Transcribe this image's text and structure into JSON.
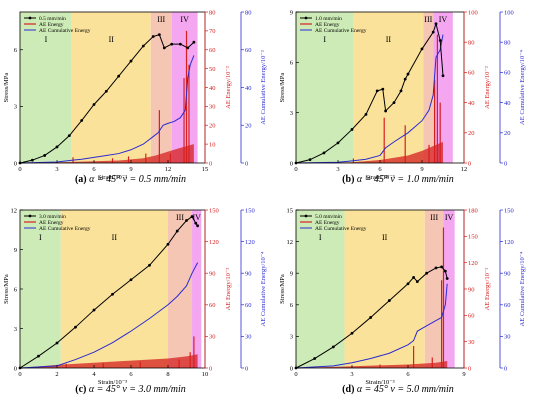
{
  "colors": {
    "stage_I": "#cdebb6",
    "stage_II": "#fbe29a",
    "stage_III": "#f5c6b4",
    "stage_IV": "#f4a6f0",
    "stress": "#000000",
    "ae_energy": "#d62020",
    "ae_cumulative": "#2b2bd0",
    "axis_left": "#000000",
    "axis_mid": "#d62020",
    "axis_right": "#2b2bd0"
  },
  "chart_data": [
    {
      "type": "line",
      "caption": {
        "letter": "(a)",
        "text": "α = 45° v = 0.5 mm/min"
      },
      "xlabel": "Strain/10⁻³",
      "ylabel_left": "Stress/MPa",
      "ylabel_mid": "AE Energy/10⁻²",
      "ylabel_right": "AE Cumulative Energy/10⁻²",
      "xlim": [
        0,
        15
      ],
      "xticks": [
        0,
        3,
        6,
        9,
        12,
        15
      ],
      "ylim_left": [
        0,
        8
      ],
      "yticks_left": [
        0,
        3,
        6
      ],
      "ylim_mid": [
        0,
        80
      ],
      "yticks_mid": [
        0,
        10,
        20,
        30,
        40,
        50,
        60,
        70,
        80
      ],
      "ylim_right": [
        0,
        80
      ],
      "yticks_right": [
        0,
        20,
        40,
        60,
        80
      ],
      "legend": [
        "0.5 mm/min",
        "AE Energy",
        "AE Cumulative Energy"
      ],
      "stages": [
        {
          "label": "I",
          "from": 0,
          "to": 4.2
        },
        {
          "label": "II",
          "from": 4.2,
          "to": 10.6
        },
        {
          "label": "III",
          "from": 10.6,
          "to": 12.3
        },
        {
          "label": "IV",
          "from": 12.3,
          "to": 14.4
        }
      ],
      "stress": {
        "x": [
          0,
          1,
          2,
          3,
          4,
          5,
          6,
          7,
          8,
          9,
          10,
          10.8,
          11.3,
          11.7,
          12.3,
          13,
          13.6,
          14.1
        ],
        "y": [
          0,
          0.15,
          0.4,
          0.85,
          1.45,
          2.25,
          3.1,
          3.8,
          4.6,
          5.4,
          6.2,
          6.7,
          6.8,
          6.1,
          6.3,
          6.3,
          6.1,
          6.4
        ]
      },
      "ae_cumulative": {
        "x": [
          0,
          3,
          4.3,
          5,
          6,
          7,
          8,
          9,
          10,
          10.8,
          11.2,
          11.6,
          12,
          12.5,
          13,
          13.4,
          13.6,
          13.8,
          14.1
        ],
        "y": [
          0,
          0.5,
          1.5,
          2,
          3,
          4,
          5,
          7,
          10,
          14,
          16,
          20,
          21,
          22,
          24,
          28,
          45,
          52,
          57
        ]
      },
      "ae_baseline": {
        "x": [
          0,
          4,
          8,
          10,
          11,
          12,
          13,
          14.1
        ],
        "y": [
          0,
          0.5,
          1.3,
          2.5,
          4,
          6,
          8,
          10
        ]
      },
      "ae_spikes": {
        "x": [
          4.3,
          7.5,
          8.8,
          10.2,
          11.3,
          12.2,
          13.3,
          13.5,
          13.7
        ],
        "y": [
          3,
          2.5,
          3.5,
          5,
          28,
          5,
          45,
          70,
          52
        ]
      }
    },
    {
      "type": "line",
      "caption": {
        "letter": "(b)",
        "text": "α = 45° v = 1.0 mm/min"
      },
      "xlabel": "Strain/10⁻³",
      "ylabel_left": "Stress/MPa",
      "ylabel_mid": "AE Energy/10⁻²",
      "ylabel_right": "AE Cumulative Energy/10⁻⁴",
      "xlim": [
        0,
        12
      ],
      "xticks": [
        0,
        3,
        6,
        9,
        12
      ],
      "ylim_left": [
        0,
        9
      ],
      "yticks_left": [
        0,
        3,
        6,
        9
      ],
      "ylim_mid": [
        0,
        100
      ],
      "yticks_mid": [
        0,
        20,
        40,
        60,
        80,
        100
      ],
      "ylim_right": [
        0,
        100
      ],
      "yticks_right": [
        0,
        20,
        40,
        60,
        80,
        100
      ],
      "legend": [
        "1.0 mm/min",
        "AE Energy",
        "AE Cumulative Energy"
      ],
      "stages": [
        {
          "label": "I",
          "from": 0,
          "to": 4.1
        },
        {
          "label": "II",
          "from": 4.1,
          "to": 9.1
        },
        {
          "label": "III",
          "from": 9.1,
          "to": 9.8
        },
        {
          "label": "IV",
          "from": 9.8,
          "to": 11.2
        }
      ],
      "stress": {
        "x": [
          0,
          1,
          2,
          3,
          4,
          5,
          5.8,
          6.2,
          6.4,
          7,
          7.5,
          7.8,
          8,
          9,
          9.8,
          10,
          10.3,
          10.5
        ],
        "y": [
          0,
          0.2,
          0.6,
          1.2,
          2.0,
          2.9,
          4.3,
          4.4,
          3.1,
          3.6,
          4.3,
          5.0,
          5.3,
          6.8,
          7.8,
          8.3,
          7.3,
          5.2
        ]
      },
      "ae_cumulative": {
        "x": [
          0,
          3,
          4.1,
          5,
          6,
          6.4,
          7,
          8,
          9,
          9.5,
          9.8,
          10,
          10.3,
          10.5
        ],
        "y": [
          0,
          0.5,
          1.5,
          2.5,
          5,
          10,
          14,
          20,
          28,
          35,
          45,
          70,
          75,
          85
        ]
      },
      "ae_baseline": {
        "x": [
          0,
          4,
          6,
          8,
          9,
          10,
          10.5
        ],
        "y": [
          0,
          0.5,
          2,
          5,
          8,
          12,
          14
        ]
      },
      "ae_spikes": {
        "x": [
          4.1,
          6.3,
          7.8,
          9.5,
          9.9,
          10.1,
          10.3
        ],
        "y": [
          3,
          30,
          25,
          12,
          55,
          85,
          40
        ]
      }
    },
    {
      "type": "line",
      "caption": {
        "letter": "(c)",
        "text": "α = 45° v = 3.0 mm/min"
      },
      "xlabel": "Strain/10⁻³",
      "ylabel_left": "Stress/MPa",
      "ylabel_mid": "AE Energy/10⁻²",
      "ylabel_right": "AE Cumulative Energy/10⁻⁴",
      "xlim": [
        0,
        10
      ],
      "xticks": [
        0,
        2,
        4,
        6,
        8,
        10
      ],
      "ylim_left": [
        0,
        12
      ],
      "yticks_left": [
        0,
        3,
        6,
        9,
        12
      ],
      "ylim_mid": [
        0,
        150
      ],
      "yticks_mid": [
        0,
        30,
        60,
        90,
        120,
        150
      ],
      "ylim_right": [
        0,
        150
      ],
      "yticks_right": [
        0,
        30,
        60,
        90,
        120,
        150
      ],
      "legend": [
        "3.0 mm/min",
        "AE Energy",
        "AE Cumulative Energy"
      ],
      "stages": [
        {
          "label": "I",
          "from": 0,
          "to": 2.2
        },
        {
          "label": "II",
          "from": 2.2,
          "to": 8.0
        },
        {
          "label": "III",
          "from": 8.0,
          "to": 9.3
        },
        {
          "label": "IV",
          "from": 9.3,
          "to": 9.8
        }
      ],
      "stress": {
        "x": [
          0,
          1,
          2,
          3,
          4,
          5,
          6,
          7,
          8,
          8.5,
          9,
          9.3,
          9.5,
          9.6
        ],
        "y": [
          0,
          0.9,
          1.9,
          3.1,
          4.4,
          5.6,
          6.7,
          7.8,
          9.4,
          10.4,
          11.2,
          11.5,
          11.0,
          10.8
        ]
      },
      "ae_cumulative": {
        "x": [
          0,
          2,
          3,
          4,
          5,
          6,
          7,
          8,
          8.5,
          9,
          9.3,
          9.6
        ],
        "y": [
          0,
          2,
          8,
          15,
          24,
          35,
          47,
          60,
          68,
          78,
          90,
          100
        ]
      },
      "ae_baseline": {
        "x": [
          0,
          2,
          4,
          6,
          8,
          9,
          9.6
        ],
        "y": [
          0,
          3,
          5,
          7,
          9,
          11,
          13
        ]
      },
      "ae_spikes": {
        "x": [
          2.5,
          4.5,
          6.5,
          8.6,
          9.2,
          9.4
        ],
        "y": [
          4,
          5,
          6,
          8,
          15,
          30
        ]
      }
    },
    {
      "type": "line",
      "caption": {
        "letter": "(d)",
        "text": "α = 45° v = 5.0 mm/min"
      },
      "xlabel": "Strain/10⁻³",
      "ylabel_left": "Stress/MPa",
      "ylabel_mid": "AE Energy/10⁻²",
      "ylabel_right": "AE Cumulative Energy/10⁻⁴",
      "xlim": [
        0,
        9
      ],
      "xticks": [
        0,
        3,
        6,
        9
      ],
      "ylim_left": [
        0,
        15
      ],
      "yticks_left": [
        0,
        3,
        6,
        9,
        12,
        15
      ],
      "ylim_mid": [
        0,
        180
      ],
      "yticks_mid": [
        0,
        30,
        60,
        90,
        120,
        150,
        180
      ],
      "ylim_right": [
        0,
        150
      ],
      "yticks_right": [
        0,
        30,
        60,
        90,
        120,
        150
      ],
      "legend": [
        "5.0 mm/min",
        "AE Energy",
        "AE Cumulative Energy"
      ],
      "stages": [
        {
          "label": "I",
          "from": 0,
          "to": 2.6
        },
        {
          "label": "II",
          "from": 2.6,
          "to": 6.9
        },
        {
          "label": "III",
          "from": 6.9,
          "to": 7.9
        },
        {
          "label": "IV",
          "from": 7.9,
          "to": 8.5
        }
      ],
      "stress": {
        "x": [
          0,
          1,
          2,
          3,
          4,
          5,
          6,
          6.3,
          6.5,
          7,
          7.5,
          7.8,
          8.0,
          8.1
        ],
        "y": [
          0,
          0.9,
          2.0,
          3.3,
          4.8,
          6.4,
          8.0,
          8.6,
          8.2,
          9.0,
          9.5,
          9.6,
          9.2,
          8.5
        ]
      },
      "ae_cumulative": {
        "x": [
          0,
          2,
          3,
          4,
          5,
          6,
          6.3,
          6.5,
          7,
          7.5,
          7.8,
          8.0,
          8.1
        ],
        "y": [
          0,
          2,
          5,
          9,
          14,
          22,
          26,
          35,
          40,
          45,
          48,
          60,
          80
        ]
      },
      "ae_baseline": {
        "x": [
          0,
          3,
          6,
          7.5,
          8.1
        ],
        "y": [
          0,
          2,
          4,
          6,
          8
        ]
      },
      "ae_spikes": {
        "x": [
          4.5,
          6.3,
          7.3,
          7.8,
          7.9
        ],
        "y": [
          4,
          25,
          12,
          100,
          160
        ]
      }
    }
  ]
}
